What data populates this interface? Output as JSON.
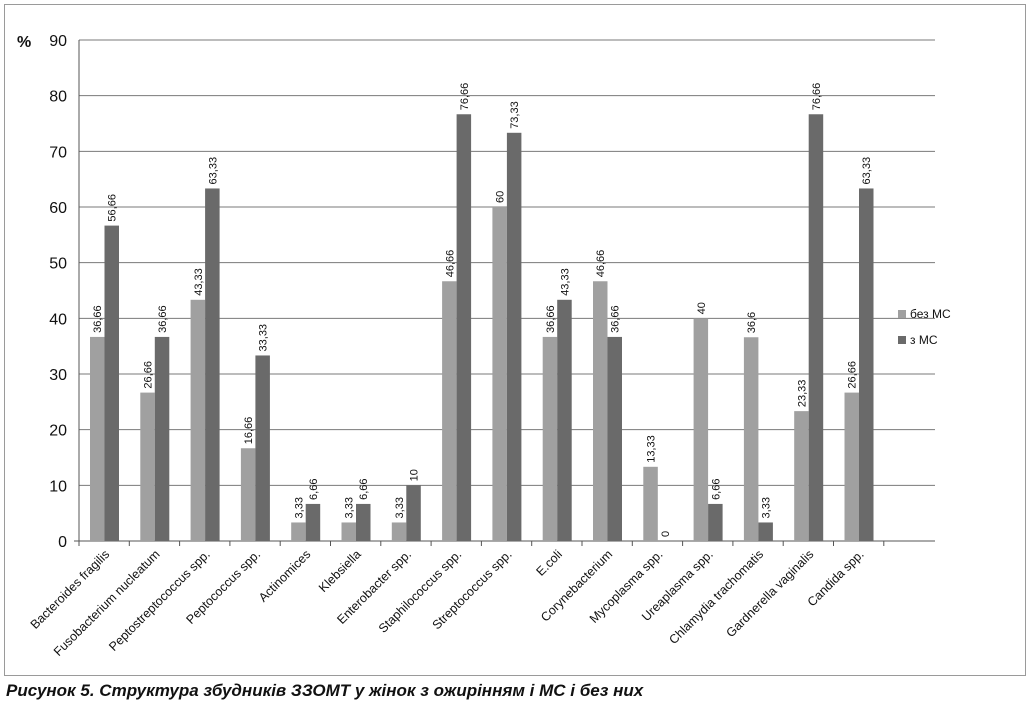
{
  "caption": "Рисунок 5. Структура збудників ЗЗОМТ у жінок з ожирінням і МС і без них",
  "chart_data": {
    "type": "bar",
    "ylabel": "%",
    "ylim": [
      0,
      90
    ],
    "yticks": [
      0,
      10,
      20,
      30,
      40,
      50,
      60,
      70,
      80,
      90
    ],
    "grid": true,
    "legend_position": "right",
    "categories": [
      "Bacteroides fragilis",
      "Fusobacterium nucleatum",
      "Peptostreptococcus spp.",
      "Peptococcus spp.",
      "Actinomices",
      "Klebsiella",
      "Enterobacter spp.",
      "Staphilococcus spp.",
      "Streptococcus spp.",
      "E.coli",
      "Corynebacterium",
      "Mycoplasma spp.",
      "Ureaplasma spp.",
      "Chlamydia trachomatis",
      "Gardnerella vaginalis",
      "Candida spp."
    ],
    "series": [
      {
        "name": "без МС",
        "color": "#a0a0a0",
        "values": [
          36.66,
          26.66,
          43.33,
          16.66,
          3.33,
          3.33,
          3.33,
          46.66,
          60,
          36.66,
          46.66,
          13.33,
          40,
          36.6,
          23.33,
          26.66
        ],
        "labels": [
          "36,66",
          "26,66",
          "43,33",
          "16,66",
          "3,33",
          "3,33",
          "3,33",
          "46,66",
          "60",
          "36,66",
          "46,66",
          "13,33",
          "40",
          "36,6",
          "23,33",
          "26,66"
        ]
      },
      {
        "name": "з МС",
        "color": "#6a6a6a",
        "values": [
          56.66,
          36.66,
          63.33,
          33.33,
          6.66,
          6.66,
          10,
          76.66,
          73.33,
          43.33,
          36.66,
          0,
          6.66,
          3.33,
          76.66,
          63.33
        ],
        "labels": [
          "56,66",
          "36,66",
          "63,33",
          "33,33",
          "6,66",
          "6,66",
          "10",
          "76,66",
          "73,33",
          "43,33",
          "36,66",
          "0",
          "6,66",
          "3,33",
          "76,66",
          "63,33"
        ]
      }
    ]
  }
}
